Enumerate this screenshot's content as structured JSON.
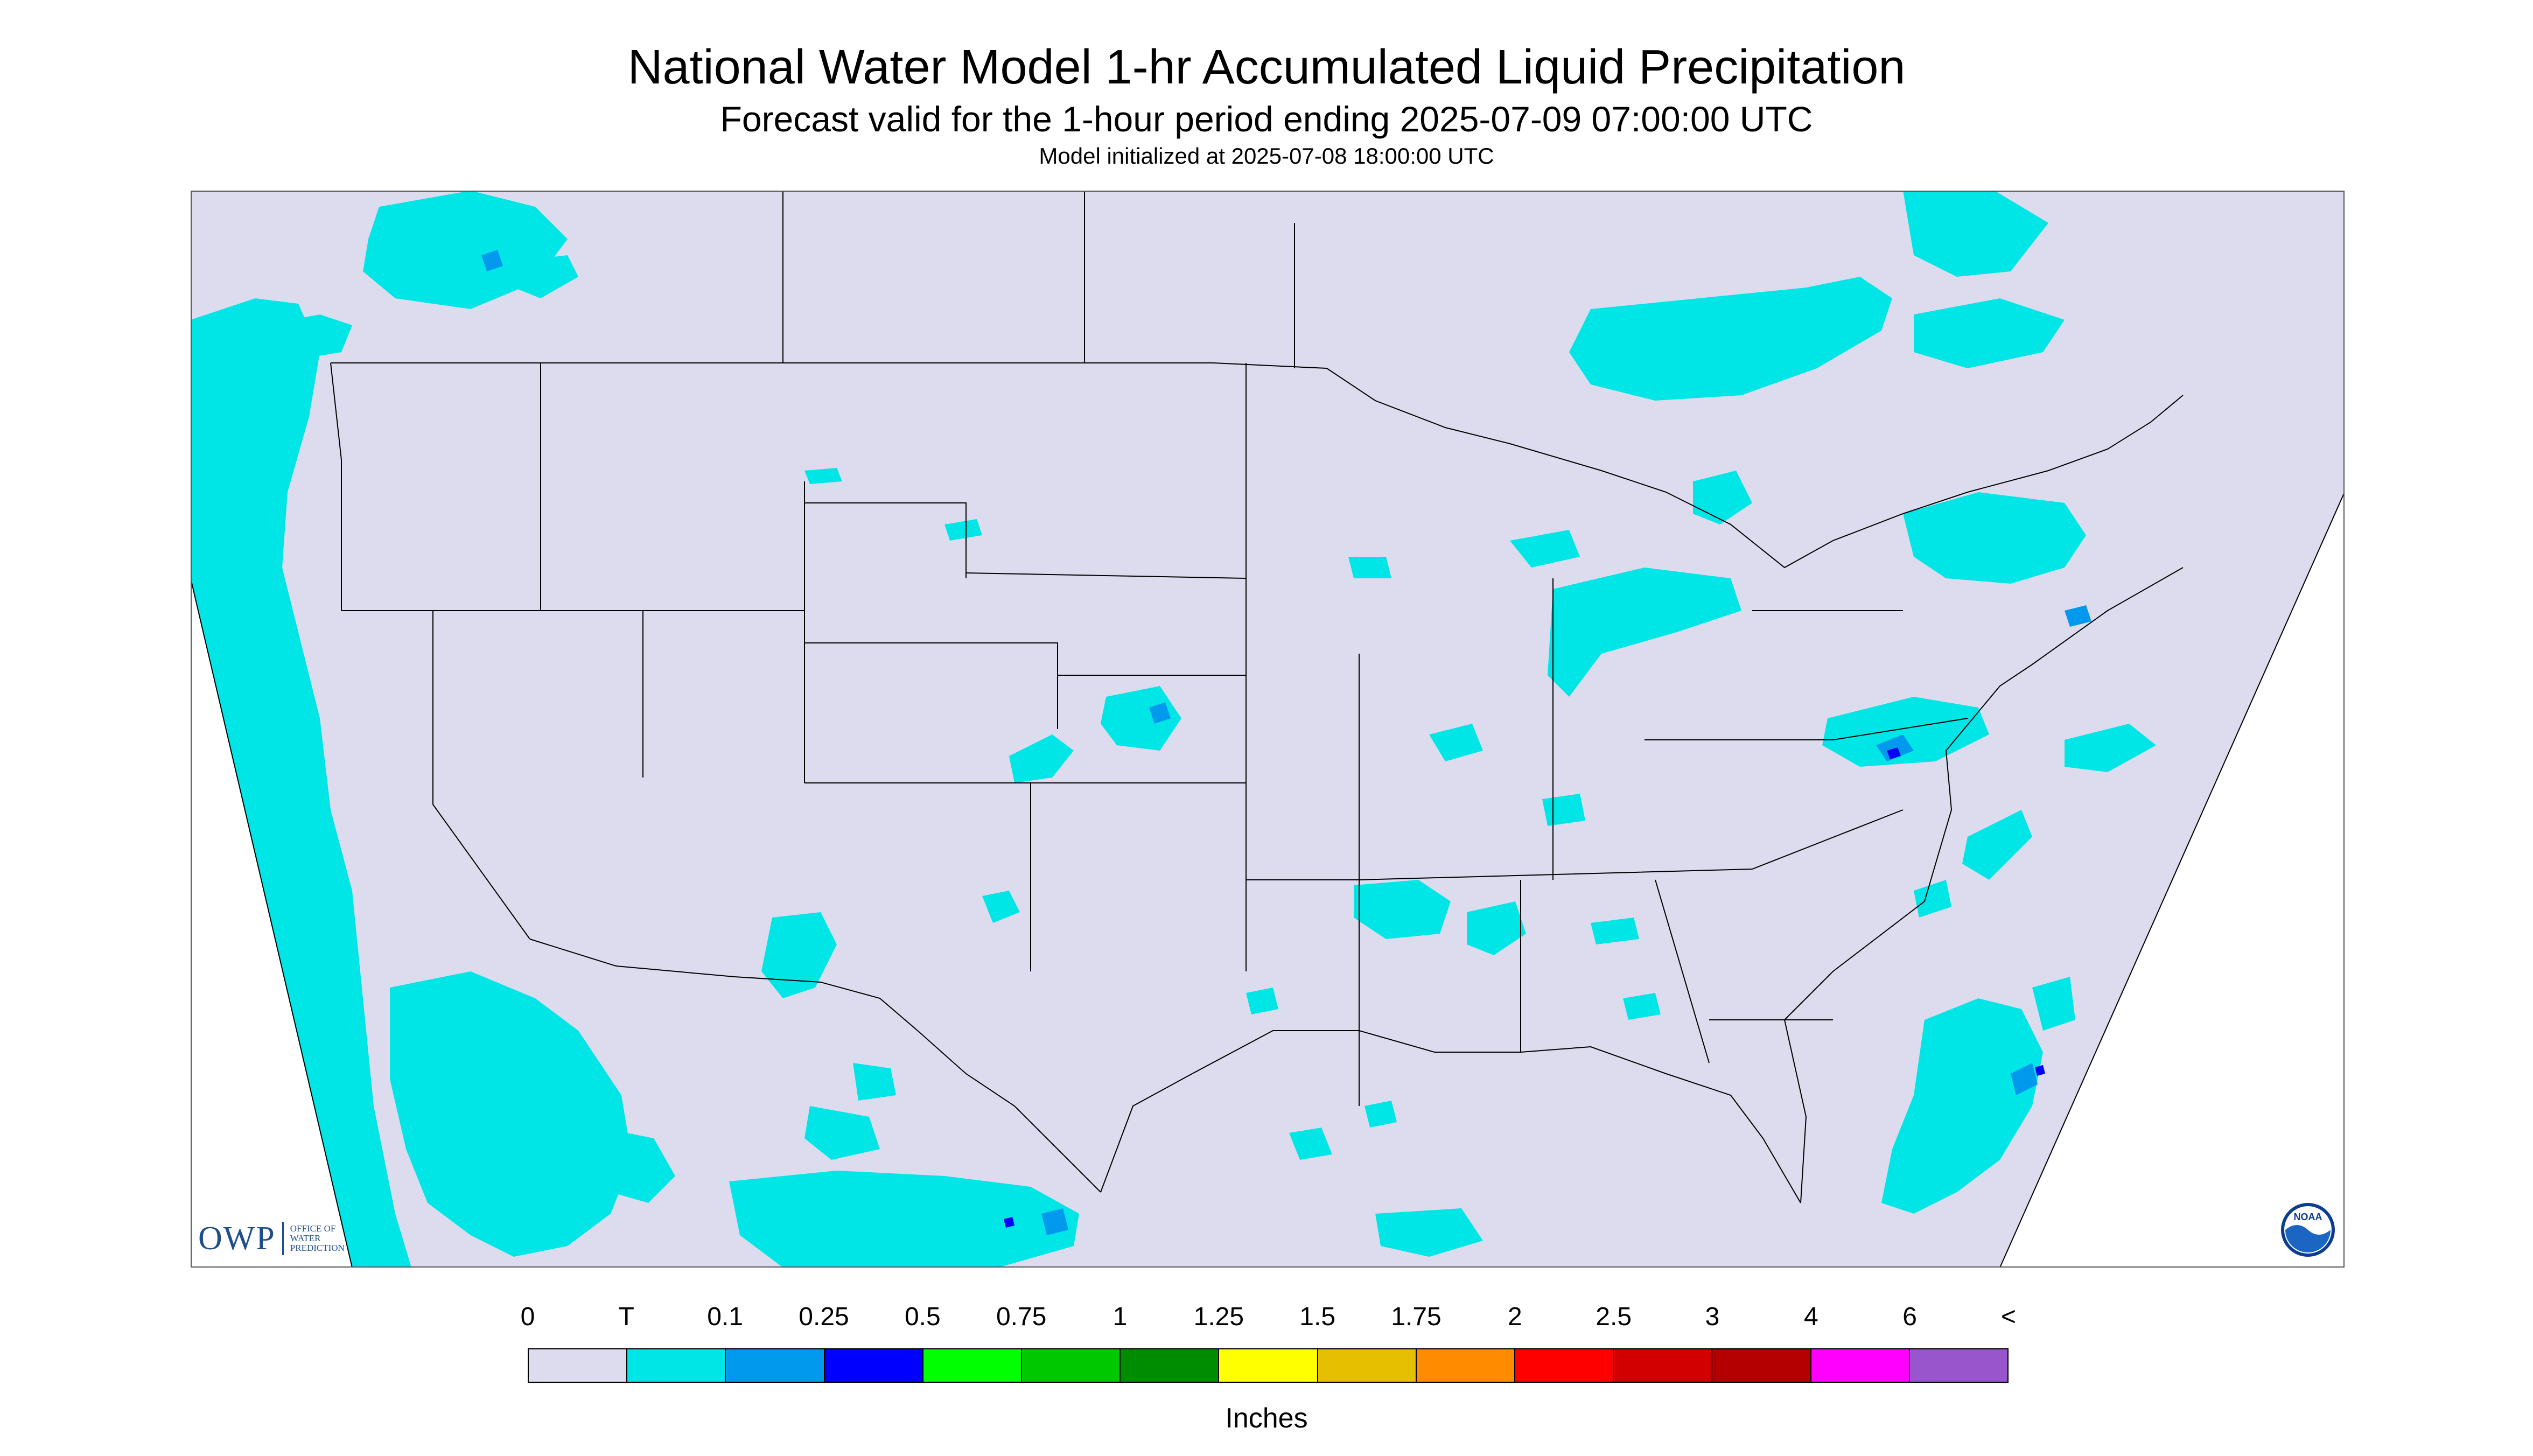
{
  "title": "National Water Model 1-hr Accumulated Liquid Precipitation",
  "subtitle": "Forecast valid for the 1-hour period ending 2025-07-09 07:00:00 UTC",
  "init_line": "Model initialized at 2025-07-08 18:00:00 UTC",
  "logos": {
    "owp_letters": "OWP",
    "owp_name": "OFFICE OF WATER PREDICTION",
    "noaa_text": "NOAA"
  },
  "legend": {
    "tick_labels": [
      "0",
      "T",
      "0.1",
      "0.25",
      "0.5",
      "0.75",
      "1",
      "1.25",
      "1.5",
      "1.75",
      "2",
      "2.5",
      "3",
      "4",
      "6",
      "<"
    ],
    "colors": [
      "#dcdcee",
      "#00e6e6",
      "#0099ee",
      "#0000ff",
      "#00ff00",
      "#00c800",
      "#008c00",
      "#ffff00",
      "#e6bf00",
      "#ff8c00",
      "#ff0000",
      "#d20000",
      "#b40000",
      "#ff00ff",
      "#9955cc"
    ],
    "units": "Inches"
  },
  "colors": {
    "map_background": "#dcdcee",
    "outside_domain": "#ffffff",
    "trace_precip": "#00e6e6",
    "light_precip": "#0099ee",
    "moderate_precip": "#0000ff",
    "border_lines": "#000000"
  }
}
